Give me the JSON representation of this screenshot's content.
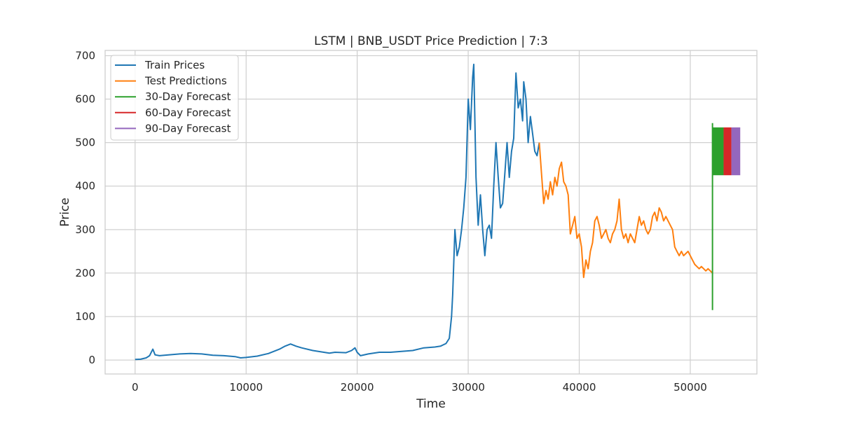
{
  "chart_data": {
    "type": "line",
    "title": "LSTM | BNB_USDT Price Prediction | 7:3",
    "xlabel": "Time",
    "ylabel": "Price",
    "xlim": [
      -2700,
      56000
    ],
    "ylim": [
      -32,
      712
    ],
    "xticks": [
      0,
      10000,
      20000,
      30000,
      40000,
      50000
    ],
    "yticks": [
      0,
      100,
      200,
      300,
      400,
      500,
      600,
      700
    ],
    "grid": true,
    "legend_position": "top-left",
    "colors": {
      "background": "#ffffff",
      "grid": "#d0d0d0",
      "spine": "#cccccc",
      "text": "#262626"
    },
    "series": [
      {
        "name": "Train Prices",
        "color": "#1f77b4",
        "x": [
          0,
          500,
          1000,
          1300,
          1500,
          1600,
          1800,
          2200,
          3000,
          4000,
          5000,
          6000,
          7000,
          8000,
          9000,
          9500,
          10000,
          11000,
          12000,
          13000,
          13500,
          14000,
          14500,
          15000,
          16000,
          17000,
          17500,
          18000,
          19000,
          19500,
          19800,
          20000,
          20300,
          21000,
          22000,
          23000,
          24000,
          25000,
          26000,
          27000,
          27500,
          28000,
          28300,
          28500,
          28600,
          28800,
          29000,
          29200,
          29400,
          29600,
          29800,
          30000,
          30200,
          30400,
          30500,
          30700,
          30900,
          31100,
          31300,
          31500,
          31700,
          31900,
          32100,
          32300,
          32500,
          32700,
          32900,
          33100,
          33300,
          33500,
          33700,
          33900,
          34100,
          34300,
          34500,
          34700,
          34900,
          35000,
          35200,
          35400,
          35600,
          35800,
          36000,
          36200,
          36400
        ],
        "values": [
          1.5,
          2,
          5,
          10,
          20,
          25,
          12,
          10,
          12,
          14,
          15,
          14,
          11,
          10,
          8,
          5,
          6,
          9,
          15,
          25,
          32,
          37,
          32,
          28,
          22,
          18,
          16,
          18,
          17,
          22,
          28,
          18,
          10,
          14,
          18,
          18,
          20,
          22,
          28,
          30,
          32,
          38,
          50,
          100,
          150,
          300,
          240,
          260,
          300,
          350,
          420,
          600,
          530,
          650,
          680,
          420,
          310,
          380,
          300,
          240,
          300,
          310,
          280,
          400,
          500,
          420,
          350,
          360,
          430,
          500,
          420,
          480,
          510,
          660,
          580,
          600,
          550,
          640,
          600,
          500,
          560,
          520,
          480,
          470,
          500
        ]
      },
      {
        "name": "Test Predictions",
        "color": "#ff7f0e",
        "x": [
          36400,
          36600,
          36800,
          37000,
          37200,
          37400,
          37600,
          37800,
          38000,
          38200,
          38400,
          38600,
          38800,
          39000,
          39200,
          39400,
          39600,
          39800,
          40000,
          40200,
          40400,
          40600,
          40800,
          41000,
          41200,
          41400,
          41600,
          41800,
          42000,
          42200,
          42400,
          42600,
          42800,
          43000,
          43200,
          43400,
          43600,
          43800,
          44000,
          44200,
          44400,
          44600,
          44800,
          45000,
          45200,
          45400,
          45600,
          45800,
          46000,
          46200,
          46400,
          46600,
          46800,
          47000,
          47200,
          47400,
          47600,
          47800,
          48000,
          48200,
          48400,
          48600,
          48800,
          49000,
          49200,
          49400,
          49600,
          49800,
          50000,
          50200,
          50400,
          50600,
          50800,
          51000,
          51200,
          51400,
          51600,
          51800,
          52000
        ],
        "values": [
          500,
          430,
          360,
          390,
          370,
          410,
          380,
          420,
          400,
          440,
          455,
          410,
          400,
          380,
          290,
          310,
          330,
          280,
          290,
          260,
          190,
          230,
          210,
          250,
          270,
          320,
          330,
          310,
          280,
          290,
          300,
          280,
          270,
          290,
          300,
          320,
          370,
          300,
          280,
          290,
          270,
          290,
          280,
          270,
          300,
          330,
          310,
          320,
          300,
          290,
          300,
          330,
          340,
          320,
          350,
          340,
          320,
          330,
          320,
          310,
          300,
          260,
          250,
          240,
          250,
          240,
          245,
          250,
          240,
          230,
          220,
          215,
          210,
          215,
          210,
          205,
          210,
          205,
          200
        ]
      }
    ],
    "forecasts": [
      {
        "name": "30-Day Forecast",
        "color": "#2ca02c",
        "x_start": 52000,
        "x_end": 53000,
        "y_low": 425,
        "y_high": 535,
        "spike_low": 115,
        "spike_high": 545
      },
      {
        "name": "60-Day Forecast",
        "color": "#d62728",
        "x_start": 53000,
        "x_end": 53700,
        "y_low": 425,
        "y_high": 535
      },
      {
        "name": "90-Day Forecast",
        "color": "#9467bd",
        "x_start": 53700,
        "x_end": 54500,
        "y_low": 425,
        "y_high": 535
      }
    ]
  }
}
